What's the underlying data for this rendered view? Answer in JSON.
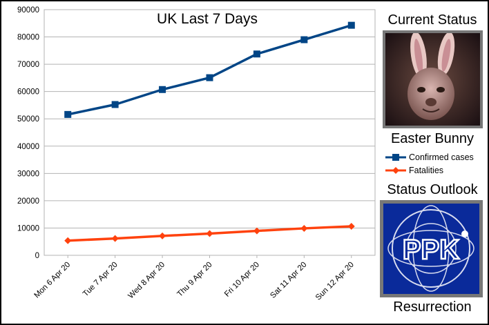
{
  "chart_data": {
    "type": "line",
    "title": "UK Last 7 Days",
    "categories": [
      "Mon 6 Apr 20",
      "Tue 7 Apr 20",
      "Wed 8 Apr 20",
      "Thu 9 Apr 20",
      "Fri 10 Apr 20",
      "Sat 11 Apr 20",
      "Sun 12 Apr 20"
    ],
    "series": [
      {
        "name": "Confirmed cases",
        "color": "#004586",
        "marker": "square",
        "values": [
          51608,
          55242,
          60733,
          65077,
          73758,
          78991,
          84279
        ]
      },
      {
        "name": "Fatalities",
        "color": "#ff420e",
        "marker": "diamond",
        "values": [
          5373,
          6159,
          7097,
          7978,
          8958,
          9875,
          10612
        ]
      }
    ],
    "ylim": [
      0,
      90000
    ],
    "yticks": [
      0,
      10000,
      20000,
      30000,
      40000,
      50000,
      60000,
      70000,
      80000,
      90000
    ],
    "ytick_labels": [
      "0",
      "10000",
      "20000",
      "30000",
      "40000",
      "50000",
      "60000",
      "70000",
      "80000",
      "90000"
    ],
    "grid": true,
    "legend_position": "right"
  },
  "side_panel": {
    "current_status_heading": "Current Status",
    "current_status_caption": "Easter Bunny",
    "outlook_heading": "Status Outlook",
    "outlook_caption": "Resurrection",
    "logo_text": "PPK"
  },
  "colors": {
    "frame": "#000000",
    "logo_background": "#0a2a9a",
    "photo_border": "#777777"
  }
}
